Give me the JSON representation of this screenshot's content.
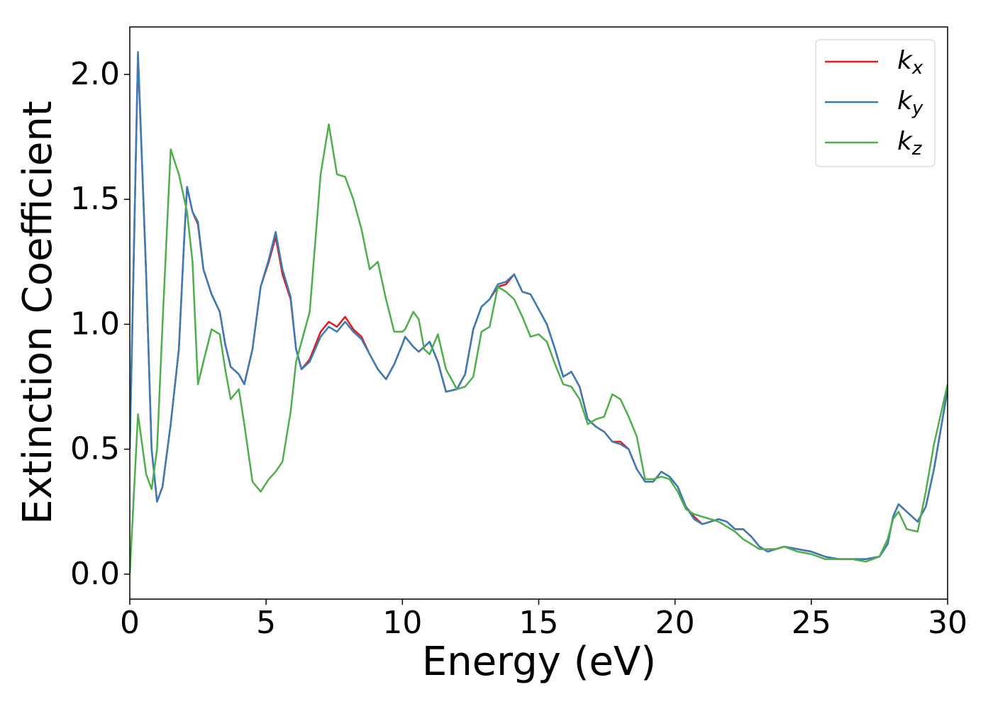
{
  "chart_data": {
    "type": "line",
    "xlabel": "Energy (eV)",
    "ylabel": "Extinction Coefficient",
    "x": [
      0,
      0.3,
      0.6,
      0.8,
      1.0,
      1.2,
      1.5,
      1.8,
      2.0,
      2.1,
      2.3,
      2.5,
      2.7,
      3.0,
      3.3,
      3.5,
      3.7,
      4.0,
      4.2,
      4.5,
      4.8,
      5.1,
      5.35,
      5.6,
      5.9,
      6.1,
      6.3,
      6.6,
      7.0,
      7.3,
      7.6,
      7.9,
      8.2,
      8.5,
      8.8,
      9.1,
      9.4,
      9.7,
      10.0,
      10.1,
      10.4,
      10.6,
      10.8,
      11.0,
      11.3,
      11.6,
      12.0,
      12.3,
      12.6,
      12.9,
      13.2,
      13.5,
      13.8,
      14.1,
      14.4,
      14.7,
      15.0,
      15.3,
      15.6,
      15.9,
      16.2,
      16.5,
      16.8,
      17.1,
      17.4,
      17.7,
      18.0,
      18.3,
      18.6,
      18.9,
      19.2,
      19.5,
      19.8,
      20.1,
      20.4,
      20.7,
      21.0,
      21.3,
      21.6,
      21.9,
      22.2,
      22.5,
      22.8,
      23.1,
      23.4,
      23.7,
      24.0,
      24.5,
      25.0,
      25.5,
      26.0,
      26.5,
      27.0,
      27.5,
      27.8,
      28.0,
      28.2,
      28.5,
      28.9,
      29.2,
      29.5,
      30.0
    ],
    "series": [
      {
        "name": "kx",
        "color": "#e41a1c",
        "values": [
          0.5,
          2.08,
          1.2,
          0.5,
          0.29,
          0.35,
          0.6,
          0.9,
          1.35,
          1.55,
          1.45,
          1.4,
          1.22,
          1.12,
          1.05,
          0.92,
          0.83,
          0.8,
          0.76,
          0.9,
          1.15,
          1.25,
          1.35,
          1.2,
          1.1,
          0.9,
          0.82,
          0.86,
          0.97,
          1.01,
          0.99,
          1.03,
          0.98,
          0.95,
          0.88,
          0.82,
          0.78,
          0.84,
          0.92,
          0.95,
          0.91,
          0.89,
          0.91,
          0.93,
          0.85,
          0.73,
          0.74,
          0.8,
          0.98,
          1.07,
          1.1,
          1.15,
          1.16,
          1.2,
          1.13,
          1.12,
          1.06,
          1.0,
          0.9,
          0.79,
          0.81,
          0.75,
          0.62,
          0.59,
          0.57,
          0.53,
          0.53,
          0.5,
          0.42,
          0.37,
          0.37,
          0.41,
          0.39,
          0.35,
          0.27,
          0.23,
          0.2,
          0.21,
          0.22,
          0.21,
          0.18,
          0.18,
          0.15,
          0.11,
          0.09,
          0.1,
          0.11,
          0.1,
          0.09,
          0.07,
          0.06,
          0.06,
          0.06,
          0.07,
          0.12,
          0.23,
          0.28,
          0.25,
          0.21,
          0.27,
          0.42,
          0.74
        ]
      },
      {
        "name": "ky",
        "color": "#377eb8",
        "values": [
          0.5,
          2.09,
          1.2,
          0.5,
          0.29,
          0.35,
          0.6,
          0.9,
          1.35,
          1.55,
          1.45,
          1.41,
          1.22,
          1.12,
          1.05,
          0.92,
          0.83,
          0.8,
          0.76,
          0.9,
          1.15,
          1.26,
          1.37,
          1.22,
          1.11,
          0.9,
          0.82,
          0.85,
          0.95,
          0.99,
          0.97,
          1.01,
          0.97,
          0.94,
          0.88,
          0.82,
          0.78,
          0.84,
          0.92,
          0.95,
          0.91,
          0.89,
          0.91,
          0.93,
          0.85,
          0.73,
          0.74,
          0.8,
          0.98,
          1.07,
          1.1,
          1.16,
          1.17,
          1.2,
          1.13,
          1.12,
          1.06,
          1.0,
          0.9,
          0.79,
          0.81,
          0.75,
          0.62,
          0.59,
          0.57,
          0.53,
          0.52,
          0.5,
          0.42,
          0.37,
          0.37,
          0.41,
          0.39,
          0.35,
          0.27,
          0.22,
          0.2,
          0.21,
          0.22,
          0.21,
          0.18,
          0.18,
          0.15,
          0.11,
          0.09,
          0.1,
          0.11,
          0.1,
          0.09,
          0.07,
          0.06,
          0.06,
          0.06,
          0.07,
          0.12,
          0.23,
          0.28,
          0.25,
          0.21,
          0.27,
          0.42,
          0.74
        ]
      },
      {
        "name": "kz",
        "color": "#4daf4a",
        "values": [
          0.0,
          0.64,
          0.4,
          0.34,
          0.5,
          1.0,
          1.7,
          1.6,
          1.5,
          1.45,
          1.25,
          0.76,
          0.85,
          0.98,
          0.96,
          0.82,
          0.7,
          0.74,
          0.6,
          0.37,
          0.33,
          0.38,
          0.41,
          0.45,
          0.65,
          0.85,
          0.93,
          1.05,
          1.6,
          1.8,
          1.6,
          1.59,
          1.5,
          1.38,
          1.22,
          1.25,
          1.1,
          0.97,
          0.97,
          0.98,
          1.05,
          1.02,
          0.9,
          0.88,
          0.96,
          0.82,
          0.74,
          0.75,
          0.79,
          0.97,
          0.99,
          1.15,
          1.13,
          1.1,
          1.03,
          0.95,
          0.96,
          0.93,
          0.84,
          0.76,
          0.75,
          0.7,
          0.6,
          0.62,
          0.63,
          0.72,
          0.7,
          0.63,
          0.55,
          0.38,
          0.38,
          0.39,
          0.38,
          0.33,
          0.26,
          0.24,
          0.23,
          0.22,
          0.21,
          0.19,
          0.17,
          0.14,
          0.12,
          0.1,
          0.1,
          0.1,
          0.11,
          0.09,
          0.08,
          0.06,
          0.06,
          0.06,
          0.05,
          0.07,
          0.14,
          0.22,
          0.25,
          0.18,
          0.17,
          0.33,
          0.52,
          0.76
        ]
      }
    ],
    "xlim": [
      0,
      30
    ],
    "xticks": [
      0,
      5,
      10,
      15,
      20,
      25,
      30
    ],
    "ylim": [
      -0.1,
      2.19
    ],
    "yticks": [
      {
        "value": 0,
        "label": "0.0"
      },
      0.5,
      {
        "value": 1,
        "label": "1.0"
      },
      1.5,
      {
        "value": 2,
        "label": "2.0"
      }
    ],
    "legend": "upper right"
  }
}
